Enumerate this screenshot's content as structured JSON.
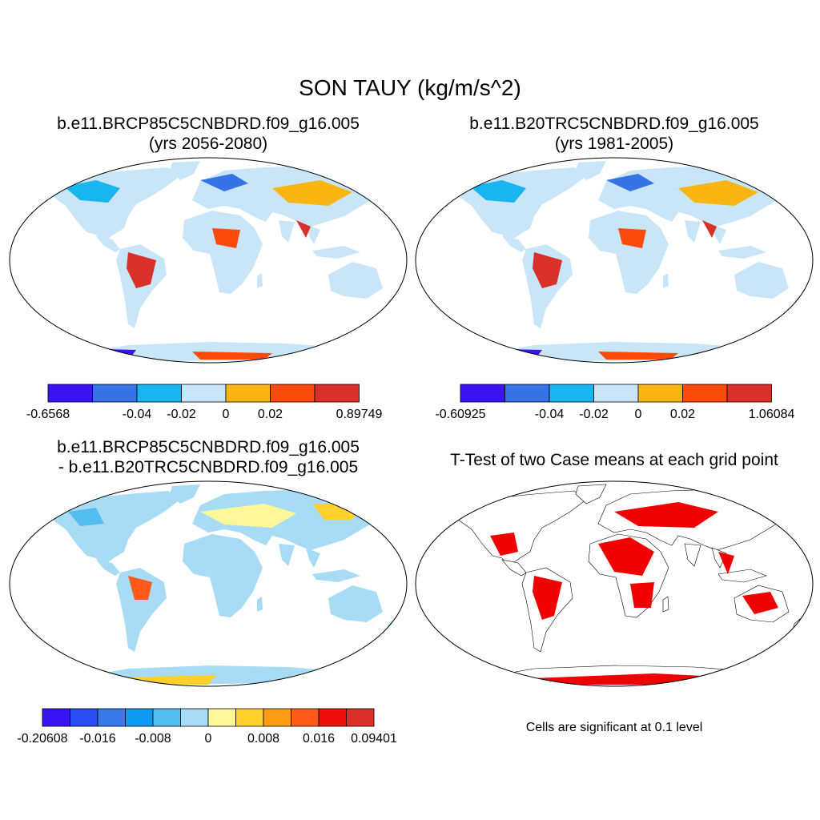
{
  "main_title": "SON TAUY (kg/m/s^2)",
  "panels": {
    "top_left": {
      "line1": "b.e11.BRCP85C5CNBDRD.f09_g16.005",
      "line2": "(yrs 2056-2080)"
    },
    "top_right": {
      "line1": "b.e11.B20TRC5CNBDRD.f09_g16.005",
      "line2": "(yrs 1981-2005)"
    },
    "bottom_left": {
      "line1": "b.e11.BRCP85C5CNBDRD.f09_g16.005",
      "line2": "- b.e11.B20TRC5CNBDRD.f09_g16.005"
    },
    "bottom_right": {
      "line1": "T-Test of two Case means at each grid point"
    }
  },
  "colorbars": {
    "top_left": {
      "colors": [
        "#3b14f5",
        "#3573e6",
        "#19b5f0",
        "#c8e6f7",
        "#fbb512",
        "#fc4a0a",
        "#d9302a"
      ],
      "labels": [
        "-0.6568",
        "-0.04",
        "-0.02",
        "0",
        "0.02",
        "0.89749"
      ],
      "label_slots": [
        0,
        2,
        3,
        4,
        5,
        7
      ]
    },
    "top_right": {
      "colors": [
        "#3b14f5",
        "#3573e6",
        "#19b5f0",
        "#c8e6f7",
        "#fbb512",
        "#fc4a0a",
        "#d9302a"
      ],
      "labels": [
        "-0.60925",
        "-0.04",
        "-0.02",
        "0",
        "0.02",
        "1.06084"
      ],
      "label_slots": [
        0,
        2,
        3,
        4,
        5,
        7
      ]
    },
    "bottom_left": {
      "colors": [
        "#3b14f5",
        "#2a4ef0",
        "#3a7ae8",
        "#0f9bf2",
        "#53bdf0",
        "#a8dcf5",
        "#fdf79a",
        "#fdd02c",
        "#fd9b14",
        "#fd5a1c",
        "#f00f0f",
        "#d9302a"
      ],
      "labels": [
        "-0.20608",
        "-0.016",
        "-0.008",
        "0",
        "0.008",
        "0.016",
        "0.09401"
      ],
      "label_slots": [
        0,
        2,
        4,
        6,
        8,
        10,
        12
      ]
    }
  },
  "significance_color": "#f00000",
  "significance_note": "Cells are significant at 0.1 level"
}
